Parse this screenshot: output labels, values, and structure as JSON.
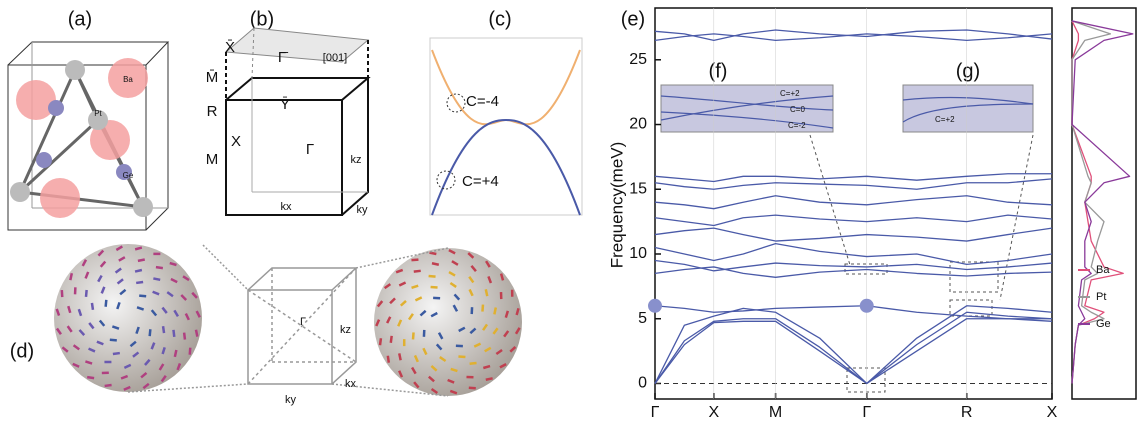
{
  "panel_labels": {
    "a": "(a)",
    "b": "(b)",
    "c": "(c)",
    "d": "(d)",
    "e": "(e)",
    "f": "(f)",
    "g": "(g)"
  },
  "panel_a": {
    "atoms": [
      "Ba",
      "Pt",
      "Ge"
    ]
  },
  "panel_b": {
    "labels": [
      "X̄",
      "Γ̄",
      "[001]",
      "M̄",
      "Ȳ",
      "R",
      "X",
      "Γ",
      "M",
      "kz",
      "kx",
      "ky"
    ]
  },
  "panel_c": {
    "labels": [
      "C=-4",
      "C=+4"
    ]
  },
  "panel_d": {
    "labels": [
      "Γ",
      "kz",
      "ky",
      "kx"
    ]
  },
  "inset_f": {
    "labels": [
      "C=+2",
      "C=0",
      "C=-2"
    ]
  },
  "inset_g": {
    "labels": [
      "C=+2"
    ]
  },
  "chart_data": [
    {
      "type": "line",
      "y_label": "Frequency(meV)",
      "x": [
        0,
        0.5,
        1,
        1.5,
        2.05,
        2.8,
        3.6,
        4.45,
        5.3,
        6.0,
        6.75
      ],
      "xlim": [
        0,
        6.75
      ],
      "xticks": [
        {
          "value": 0,
          "label": "Γ"
        },
        {
          "value": 1,
          "label": "X"
        },
        {
          "value": 2.05,
          "label": "M"
        },
        {
          "value": 3.6,
          "label": "Γ"
        },
        {
          "value": 5.3,
          "label": "R"
        },
        {
          "value": 6.75,
          "label": "X"
        }
      ],
      "ylim": [
        -1.2,
        29
      ],
      "yticks": [
        0,
        5,
        10,
        15,
        20,
        25
      ],
      "series": [
        {
          "color": "#4a5aa8",
          "values": [
            0,
            3,
            4.7,
            4.8,
            4.8,
            2.5,
            0,
            2.5,
            5,
            5,
            5
          ]
        },
        {
          "color": "#4a5aa8",
          "values": [
            0,
            3.3,
            4.8,
            5,
            5,
            2.8,
            0,
            3,
            5.5,
            5.2,
            5
          ]
        },
        {
          "color": "#4a5aa8",
          "values": [
            0,
            4.5,
            5.2,
            5.8,
            5.5,
            3.5,
            0,
            3.5,
            6,
            5.8,
            5.5
          ]
        },
        {
          "color": "#4a5aa8",
          "values": [
            6,
            5.8,
            5.5,
            5.6,
            5.8,
            5.9,
            6,
            5.5,
            5.2,
            5,
            4.8
          ]
        },
        {
          "color": "#4a5aa8",
          "values": [
            8.5,
            8.8,
            9,
            8.5,
            8.2,
            8.6,
            8.8,
            8.5,
            8.3,
            8.5,
            8.6
          ]
        },
        {
          "color": "#4a5aa8",
          "values": [
            9.5,
            9.2,
            8.7,
            9,
            9.3,
            9.1,
            9,
            9.2,
            8.8,
            9,
            9.3
          ]
        },
        {
          "color": "#4a5aa8",
          "values": [
            10.5,
            10,
            9.5,
            10,
            10.8,
            10.2,
            9.8,
            10,
            9.2,
            9.5,
            10
          ]
        },
        {
          "color": "#4a5aa8",
          "values": [
            11.5,
            11.8,
            12,
            11.5,
            11,
            11.2,
            11.5,
            11.3,
            11,
            11.5,
            12
          ]
        },
        {
          "color": "#4a5aa8",
          "values": [
            12.8,
            12.5,
            12.2,
            12.8,
            13,
            12.7,
            12.5,
            12.8,
            12.5,
            13,
            12.7
          ]
        },
        {
          "color": "#4a5aa8",
          "values": [
            14,
            13.8,
            13.5,
            14,
            14.5,
            14,
            13.8,
            14.2,
            14.5,
            14,
            13.8
          ]
        },
        {
          "color": "#4a5aa8",
          "values": [
            15.5,
            15.2,
            15,
            15.3,
            15.5,
            15.4,
            15.3,
            15,
            15.5,
            15.5,
            15.8
          ]
        },
        {
          "color": "#4a5aa8",
          "values": [
            16,
            15.8,
            15.6,
            16,
            16,
            15.8,
            16,
            15.7,
            16,
            16.2,
            16.2
          ]
        },
        {
          "color": "#4a5aa8",
          "values": [
            26.5,
            26.8,
            27,
            26.8,
            26.5,
            26.7,
            27,
            26.8,
            26.5,
            26.7,
            27
          ]
        },
        {
          "color": "#4a5aa8",
          "values": [
            27.2,
            27,
            26.5,
            27,
            27.3,
            27,
            26.8,
            27.2,
            27.3,
            27,
            26.6
          ]
        }
      ]
    },
    {
      "type": "line",
      "x": [
        0,
        3,
        4.5,
        5,
        5.5,
        6,
        8,
        8.5,
        9,
        11,
        12.5,
        14,
        15.5,
        16,
        20,
        25,
        26.5,
        27,
        28
      ],
      "xlim": [
        -1.2,
        29
      ],
      "ylim": [
        0,
        1
      ],
      "series": [
        {
          "name": "Ba",
          "color": "#e0507a",
          "values": [
            0,
            0.05,
            0.1,
            0.35,
            0.5,
            0.2,
            0.3,
            0.8,
            0.5,
            0.3,
            0.25,
            0.2,
            0.3,
            0.3,
            0,
            0,
            0.1,
            0.1,
            0
          ]
        },
        {
          "name": "Pt",
          "color": "#999999",
          "values": [
            0,
            0.05,
            0.1,
            0.5,
            0.3,
            0.15,
            0.2,
            0.4,
            0.3,
            0.4,
            0.5,
            0.2,
            0.3,
            0.25,
            0,
            0,
            0.2,
            0.6,
            0
          ]
        },
        {
          "name": "Ge",
          "color": "#8a3a9a",
          "values": [
            0,
            0.05,
            0.1,
            0.2,
            0.15,
            0.1,
            0.15,
            0.3,
            0.2,
            0.2,
            0.3,
            0.2,
            0.5,
            0.9,
            0,
            0.05,
            0.5,
            0.95,
            0
          ]
        }
      ]
    }
  ]
}
